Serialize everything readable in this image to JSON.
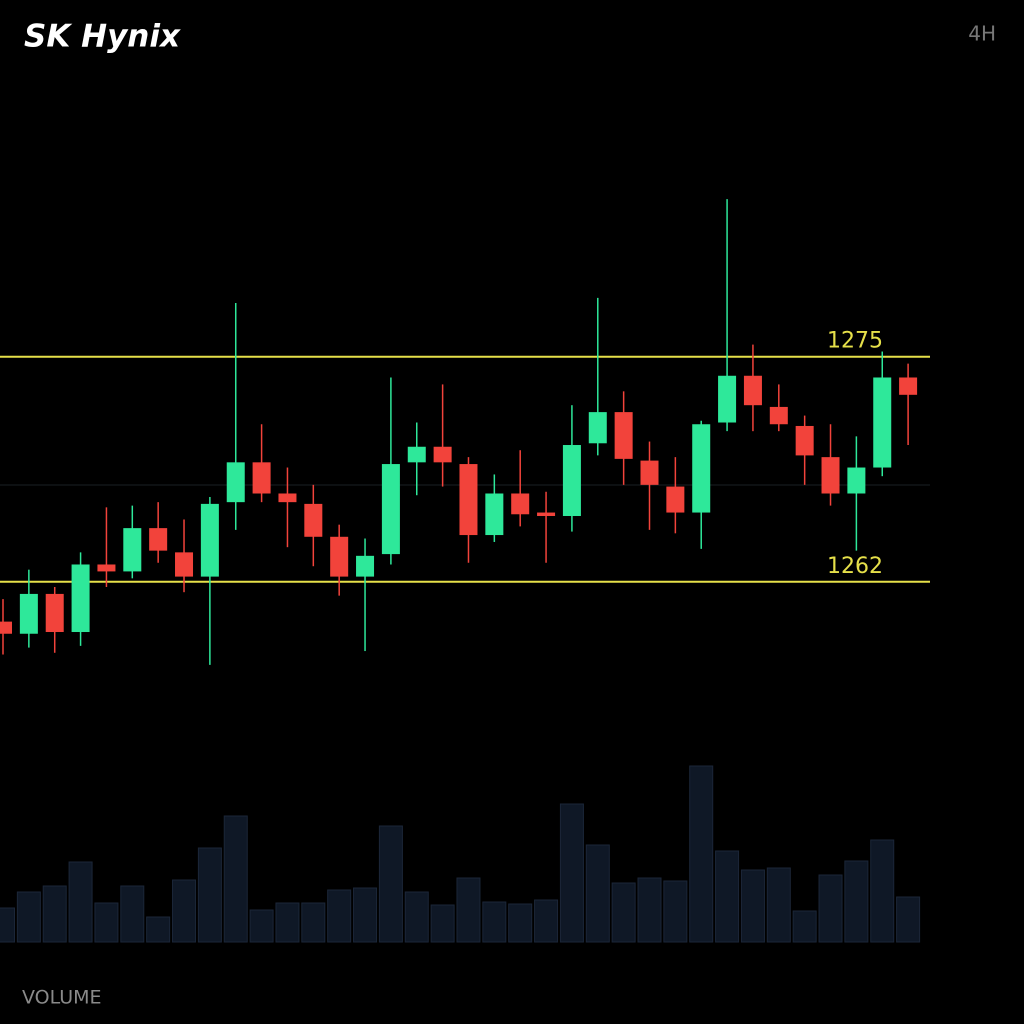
{
  "chart_data": {
    "type": "candlestick",
    "title": "SK Hynix",
    "timeframe": "4H",
    "volume_label": "VOLUME",
    "ylim": [
      1255,
      1290
    ],
    "up_color": "#2ee89a",
    "down_color": "#f2433b",
    "levels": [
      1275,
      1262
    ],
    "level_color": "#e6e04a",
    "open": [
      1259.7,
      1259.0,
      1261.3,
      1259.1,
      1263.0,
      1262.6,
      1265.1,
      1263.7,
      1262.3,
      1266.6,
      1268.9,
      1267.1,
      1266.5,
      1264.6,
      1262.3,
      1263.6,
      1268.9,
      1269.8,
      1268.8,
      1264.7,
      1267.1,
      1266.0,
      1265.8,
      1270.0,
      1271.8,
      1269.0,
      1267.5,
      1266.0,
      1271.2,
      1273.9,
      1272.1,
      1271.0,
      1269.2,
      1267.1,
      1268.6,
      1273.8
    ],
    "high": [
      1261.0,
      1262.7,
      1261.7,
      1263.7,
      1266.3,
      1266.4,
      1266.6,
      1265.6,
      1266.9,
      1278.1,
      1271.1,
      1268.6,
      1267.6,
      1265.3,
      1264.5,
      1273.8,
      1271.2,
      1273.4,
      1269.2,
      1268.2,
      1269.6,
      1267.2,
      1272.2,
      1278.4,
      1273.0,
      1270.1,
      1269.2,
      1271.3,
      1284.1,
      1275.7,
      1273.4,
      1271.6,
      1271.1,
      1270.4,
      1275.3,
      1274.6
    ],
    "low": [
      1257.8,
      1258.2,
      1257.9,
      1258.3,
      1261.7,
      1262.2,
      1263.1,
      1261.4,
      1257.2,
      1265.0,
      1266.6,
      1264.0,
      1262.9,
      1261.2,
      1258.0,
      1263.0,
      1267.0,
      1267.5,
      1263.1,
      1264.3,
      1265.2,
      1263.1,
      1264.9,
      1269.3,
      1267.6,
      1265.0,
      1264.8,
      1263.9,
      1270.7,
      1270.7,
      1270.7,
      1267.6,
      1266.4,
      1263.8,
      1268.1,
      1269.9
    ],
    "close": [
      1259.0,
      1261.3,
      1259.1,
      1263.0,
      1262.6,
      1265.1,
      1263.8,
      1262.3,
      1266.5,
      1268.9,
      1267.1,
      1266.6,
      1264.6,
      1262.3,
      1263.5,
      1268.8,
      1269.8,
      1268.9,
      1264.7,
      1267.1,
      1265.9,
      1265.8,
      1269.9,
      1271.8,
      1269.1,
      1267.6,
      1266.0,
      1271.1,
      1273.9,
      1272.2,
      1271.1,
      1269.3,
      1267.1,
      1268.6,
      1273.8,
      1272.8
    ],
    "volume": [
      34,
      50,
      56,
      80,
      39,
      56,
      25,
      62,
      94,
      126,
      32,
      39,
      39,
      52,
      54,
      116,
      50,
      37,
      64,
      40,
      38,
      42,
      138,
      97,
      59,
      64,
      61,
      176,
      91,
      72,
      74,
      31,
      67,
      81,
      102,
      45
    ],
    "volume_ylim": [
      0,
      180
    ],
    "volume_color": "#0f1826"
  }
}
